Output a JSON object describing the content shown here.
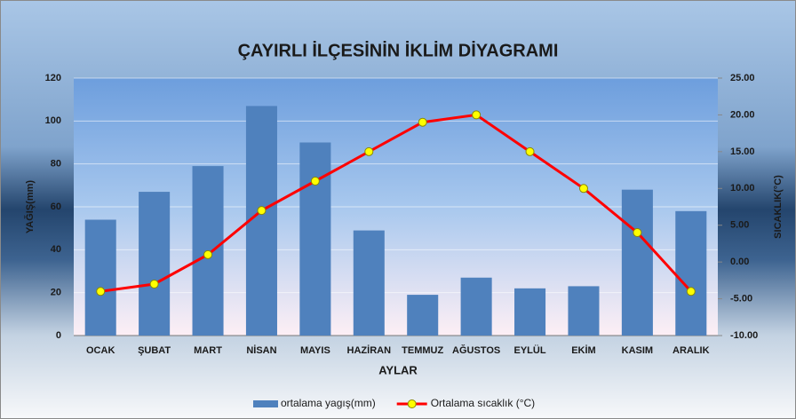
{
  "chart_data": {
    "type": "bar",
    "title": "ÇAYIRLI İLÇESİNİN İKLİM DİYAGRAMI",
    "x_label": "AYLAR",
    "y_label": "YAĞIŞ(mm)",
    "y2_label": "SICAKLIK(°C)",
    "categories": [
      "OCAK",
      "ŞUBAT",
      "MART",
      "NİSAN",
      "MAYIS",
      "HAZİRAN",
      "TEMMUZ",
      "AĞUSTOS",
      "EYLÜL",
      "EKİM",
      "KASIM",
      "ARALIK"
    ],
    "series": [
      {
        "name": "ortalama yagış(mm)",
        "type": "bar",
        "axis": "y",
        "color": "#4f81bd",
        "values": [
          54,
          67,
          79,
          107,
          90,
          49,
          19,
          27,
          22,
          23,
          68,
          58
        ]
      },
      {
        "name": "Ortalama sıcaklık  (°C)",
        "type": "line",
        "axis": "y2",
        "color": "#ff0000",
        "marker_color": "#ffff00",
        "values": [
          -4,
          -3,
          1,
          7,
          11,
          15,
          19,
          20,
          15,
          10,
          4,
          -4
        ]
      }
    ],
    "ylim": [
      0,
      120
    ],
    "yticks": [
      0,
      20,
      40,
      60,
      80,
      100,
      120
    ],
    "y2lim": [
      -10,
      25
    ],
    "y2ticks": [
      {
        "value": -10,
        "label": "-10.00"
      },
      {
        "value": -5,
        "label": "-5.00"
      },
      {
        "value": 0,
        "label": "0.00"
      },
      {
        "value": 5,
        "label": "5.00"
      },
      {
        "value": 10,
        "label": "10.00"
      },
      {
        "value": 15,
        "label": "15.00"
      },
      {
        "value": 20,
        "label": "20.00"
      },
      {
        "value": 25,
        "label": "25.00"
      }
    ],
    "grid": true,
    "legend": "bottom"
  }
}
